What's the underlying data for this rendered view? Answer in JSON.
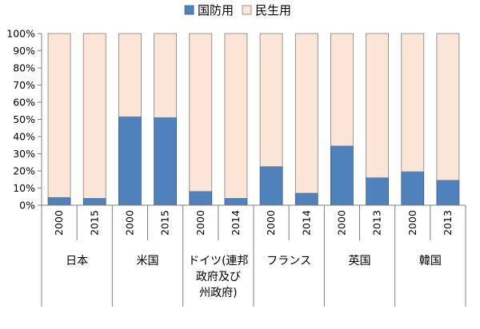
{
  "colors": {
    "defense": "#4f81bd",
    "defense_stroke": "#3a6190",
    "civil": "#fbe5d6",
    "axis": "#808080",
    "text": "#000000"
  },
  "legend": {
    "defense_label": "国防用",
    "civil_label": "民生用"
  },
  "chart_data": {
    "type": "bar",
    "stacked": true,
    "legend_position": "top",
    "grid": false,
    "ylim": [
      0,
      100
    ],
    "yticks": [
      "0%",
      "10%",
      "20%",
      "30%",
      "40%",
      "50%",
      "60%",
      "70%",
      "80%",
      "90%",
      "100%"
    ],
    "groups": [
      {
        "name": [
          "日本"
        ],
        "years": [
          "2000",
          "2015"
        ]
      },
      {
        "name": [
          "米国"
        ],
        "years": [
          "2000",
          "2015"
        ]
      },
      {
        "name": [
          "ドイツ(連邦",
          "政府及び",
          "州政府)"
        ],
        "years": [
          "2000",
          "2014"
        ]
      },
      {
        "name": [
          "フランス"
        ],
        "years": [
          "2000",
          "2014"
        ]
      },
      {
        "name": [
          "英国"
        ],
        "years": [
          "2000",
          "2013"
        ]
      },
      {
        "name": [
          "韓国"
        ],
        "years": [
          "2000",
          "2013"
        ]
      }
    ],
    "series": [
      {
        "name": "国防用",
        "values": [
          4.5,
          4,
          51.5,
          51,
          8,
          4,
          22.5,
          7,
          34.5,
          16,
          19.5,
          14.5
        ]
      },
      {
        "name": "民生用",
        "values": [
          95.5,
          96,
          48.5,
          49,
          92,
          96,
          77.5,
          93,
          65.5,
          84,
          80.5,
          85.5
        ]
      }
    ]
  }
}
